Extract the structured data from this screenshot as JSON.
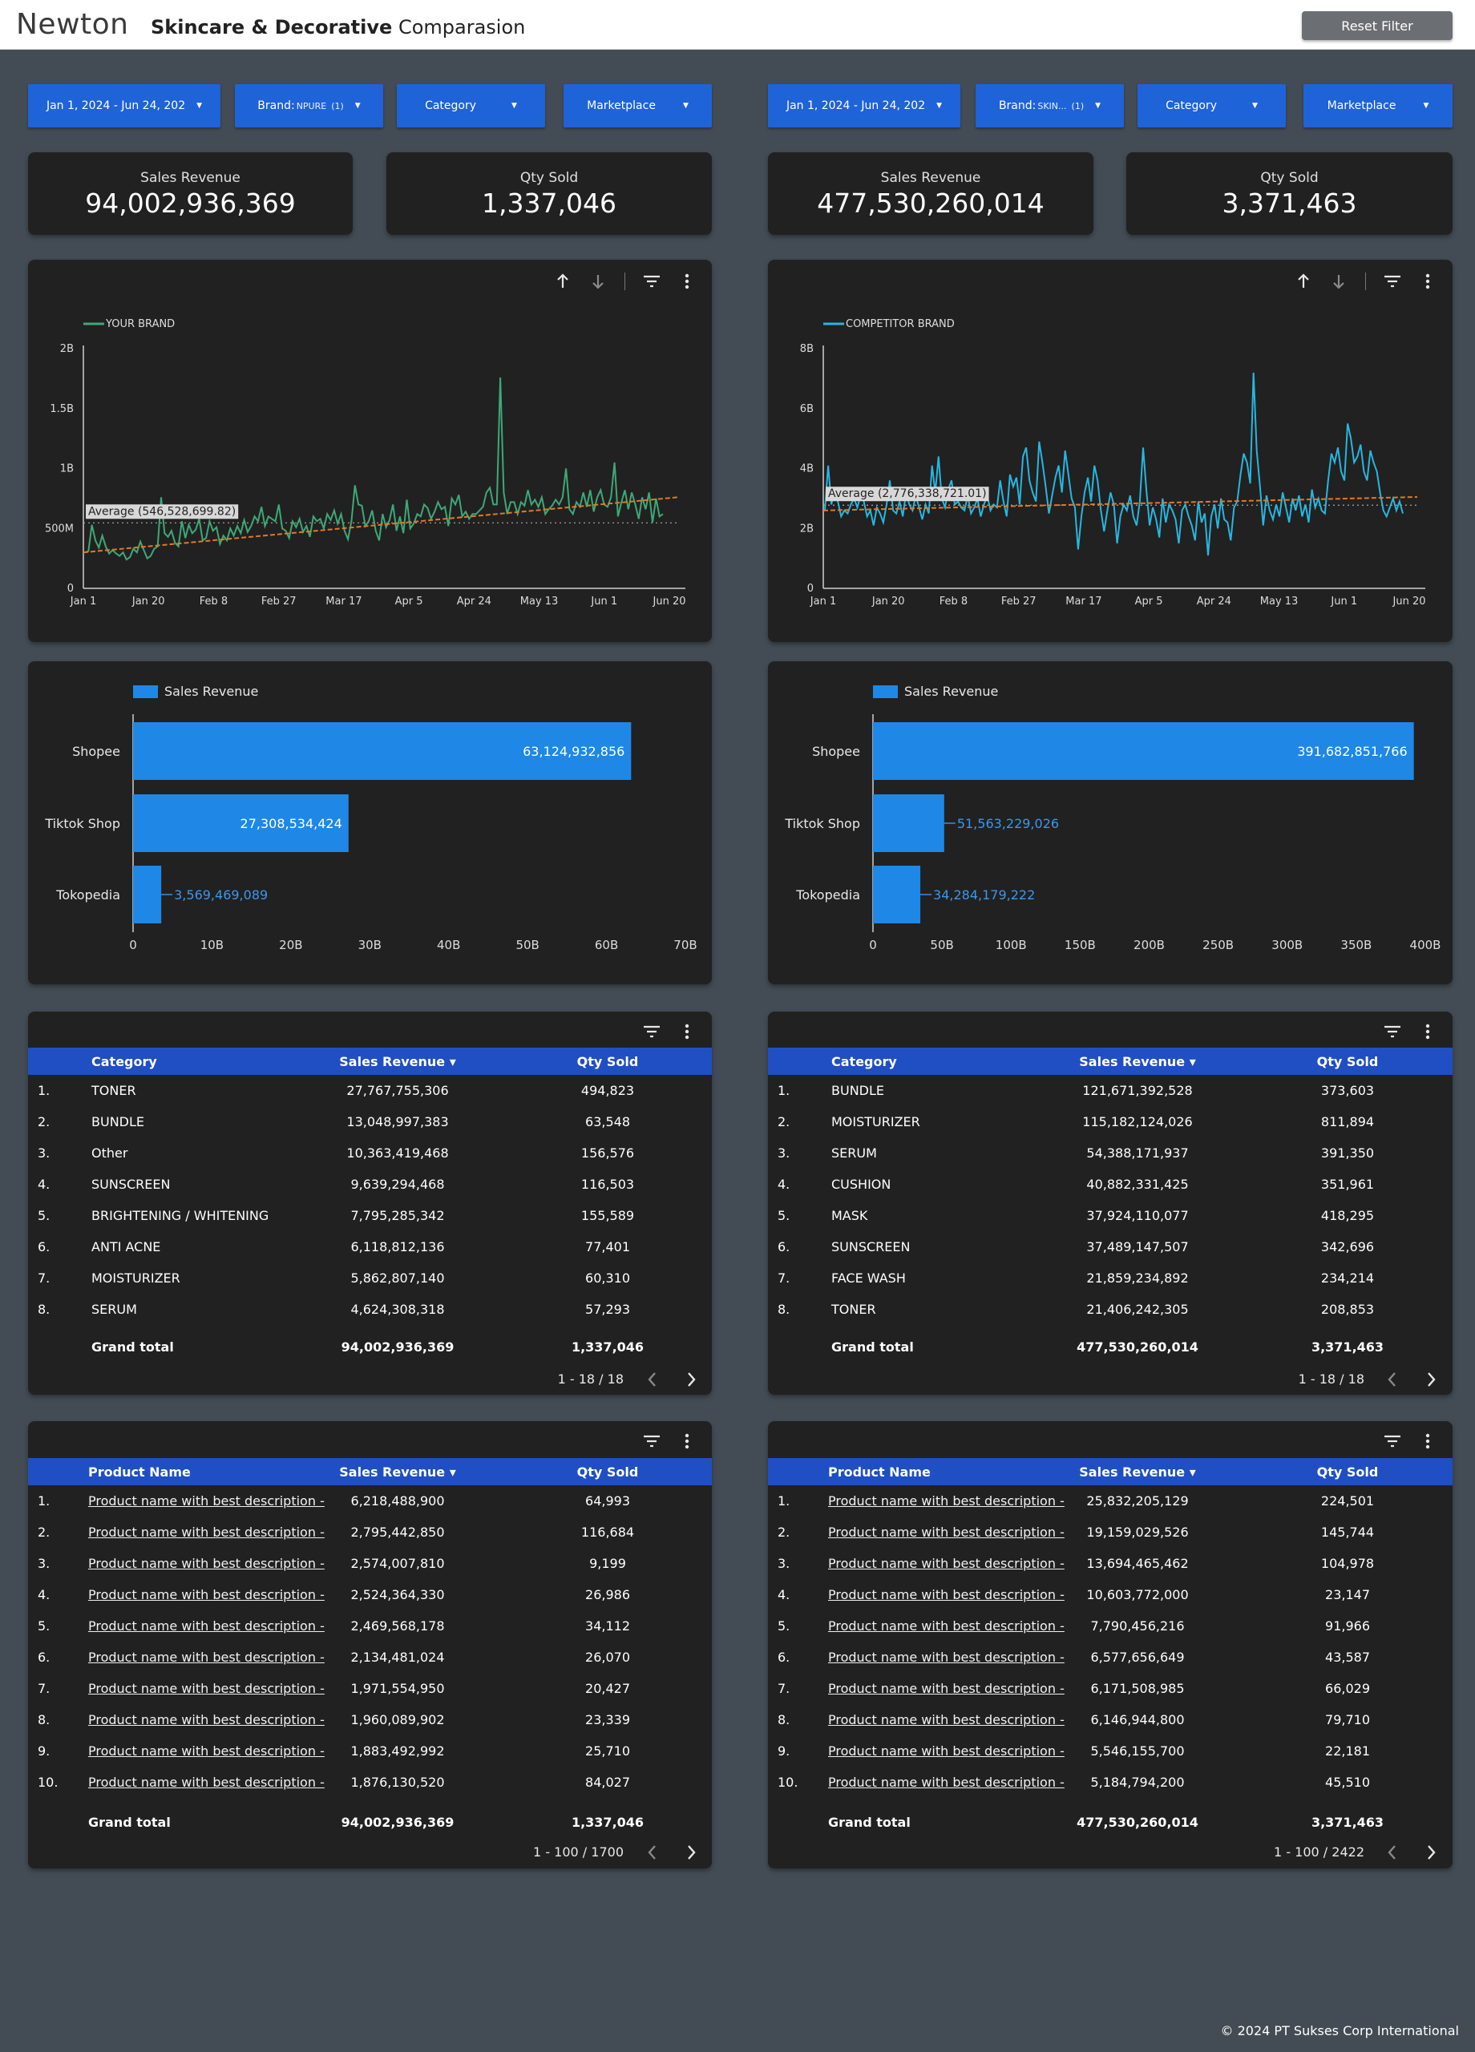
{
  "header": {
    "logo": "Newton",
    "title_bold": "Skincare & Decorative",
    "title_rest": "Comparasion",
    "reset_label": "Reset Filter"
  },
  "left": {
    "filters": {
      "date": "Jan 1, 2024 - Jun 24, 202",
      "brand_label": "Brand:",
      "brand_value": "NPURE",
      "brand_count": "(1)",
      "category": "Category",
      "marketplace": "Marketplace"
    },
    "kpis": [
      {
        "label": "Sales Revenue",
        "value": "94,002,936,369"
      },
      {
        "label": "Qty Sold",
        "value": "1,337,046"
      }
    ],
    "line_chart": {
      "legend": "YOUR BRAND",
      "color": "#3fa878",
      "y_ticks": [
        "0",
        "500M",
        "1B",
        "1.5B",
        "2B"
      ],
      "y_max": 2000000000,
      "x_ticks": [
        "Jan 1",
        "Jan 20",
        "Feb 8",
        "Feb 27",
        "Mar 17",
        "Apr 5",
        "Apr 24",
        "May 13",
        "Jun 1",
        "Jun 20"
      ],
      "average_label": "Average (546,528,699.82)",
      "average": 546528699.82,
      "trend_start": 300000000,
      "trend_end": 760000000,
      "values": [
        300,
        310,
        530,
        400,
        340,
        440,
        350,
        290,
        320,
        290,
        270,
        300,
        240,
        260,
        330,
        300,
        390,
        320,
        250,
        270,
        330,
        350,
        760,
        460,
        430,
        480,
        380,
        350,
        560,
        420,
        530,
        460,
        490,
        580,
        400,
        420,
        560,
        480,
        510,
        370,
        440,
        400,
        500,
        440,
        520,
        460,
        570,
        470,
        520,
        600,
        560,
        680,
        520,
        600,
        580,
        560,
        700,
        500,
        480,
        420,
        560,
        510,
        580,
        470,
        520,
        430,
        600,
        560,
        580,
        500,
        620,
        570,
        650,
        540,
        620,
        480,
        410,
        560,
        860,
        700,
        690,
        520,
        560,
        650,
        480,
        400,
        620,
        510,
        570,
        700,
        480,
        600,
        460,
        740,
        500,
        540,
        620,
        600,
        700,
        670,
        580,
        640,
        720,
        660,
        680,
        520,
        750,
        700,
        780,
        600,
        640,
        580,
        620,
        620,
        650,
        680,
        800,
        840,
        700,
        700,
        1760,
        800,
        620,
        720,
        720,
        620,
        720,
        690,
        820,
        700,
        740,
        680,
        760,
        620,
        660,
        690,
        740,
        700,
        760,
        1000,
        660,
        620,
        720,
        680,
        800,
        680,
        820,
        640,
        760,
        820,
        700,
        680,
        760,
        1050,
        600,
        720,
        820,
        660,
        800,
        700,
        580,
        760,
        660,
        800,
        550,
        750,
        600,
        620
      ]
    },
    "bar_chart": {
      "legend": "Sales Revenue",
      "color": "#1f88e6",
      "categories": [
        "Shopee",
        "Tiktok Shop",
        "Tokopedia"
      ],
      "values": [
        63124932856,
        27308534424,
        3569469089
      ],
      "labels": [
        "63,124,932,856",
        "27,308,534,424",
        "3,569,469,089"
      ],
      "x_ticks": [
        "0",
        "10B",
        "20B",
        "30B",
        "40B",
        "50B",
        "60B",
        "70B"
      ],
      "x_max": 70000000000
    },
    "cat_table": {
      "headers": [
        "Category",
        "Sales Revenue",
        "Qty Sold"
      ],
      "sort_icon": "▾",
      "rows": [
        {
          "n": "1.",
          "name": "TONER",
          "rev": "27,767,755,306",
          "qty": "494,823"
        },
        {
          "n": "2.",
          "name": "BUNDLE",
          "rev": "13,048,997,383",
          "qty": "63,548"
        },
        {
          "n": "3.",
          "name": "Other",
          "rev": "10,363,419,468",
          "qty": "156,576"
        },
        {
          "n": "4.",
          "name": "SUNSCREEN",
          "rev": "9,639,294,468",
          "qty": "116,503"
        },
        {
          "n": "5.",
          "name": "BRIGHTENING / WHITENING",
          "rev": "7,795,285,342",
          "qty": "155,589"
        },
        {
          "n": "6.",
          "name": "ANTI ACNE",
          "rev": "6,118,812,136",
          "qty": "77,401"
        },
        {
          "n": "7.",
          "name": "MOISTURIZER",
          "rev": "5,862,807,140",
          "qty": "60,310"
        },
        {
          "n": "8.",
          "name": "SERUM",
          "rev": "4,624,308,318",
          "qty": "57,293"
        }
      ],
      "total_label": "Grand total",
      "total_rev": "94,002,936,369",
      "total_qty": "1,337,046",
      "pager": "1 - 18 / 18"
    },
    "prod_table": {
      "headers": [
        "Product Name",
        "Sales Revenue",
        "Qty Sold"
      ],
      "rows": [
        {
          "n": "1.",
          "name": "Product name with best description -",
          "rev": "6,218,488,900",
          "qty": "64,993"
        },
        {
          "n": "2.",
          "name": "Product name with best description -",
          "rev": "2,795,442,850",
          "qty": "116,684"
        },
        {
          "n": "3.",
          "name": "Product name with best description -",
          "rev": "2,574,007,810",
          "qty": "9,199"
        },
        {
          "n": "4.",
          "name": "Product name with best description -",
          "rev": "2,524,364,330",
          "qty": "26,986"
        },
        {
          "n": "5.",
          "name": "Product name with best description -",
          "rev": "2,469,568,178",
          "qty": "34,112"
        },
        {
          "n": "6.",
          "name": "Product name with best description -",
          "rev": "2,134,481,024",
          "qty": "26,070"
        },
        {
          "n": "7.",
          "name": "Product name with best description -",
          "rev": "1,971,554,950",
          "qty": "20,427"
        },
        {
          "n": "8.",
          "name": "Product name with best description -",
          "rev": "1,960,089,902",
          "qty": "23,339"
        },
        {
          "n": "9.",
          "name": "Product name with best description -",
          "rev": "1,883,492,992",
          "qty": "25,710"
        },
        {
          "n": "10.",
          "name": "Product name with best description -",
          "rev": "1,876,130,520",
          "qty": "84,027"
        }
      ],
      "total_label": "Grand total",
      "total_rev": "94,002,936,369",
      "total_qty": "1,337,046",
      "pager": "1 - 100 / 1700"
    }
  },
  "right": {
    "filters": {
      "date": "Jan 1, 2024 - Jun 24, 202",
      "brand_label": "Brand:",
      "brand_value": "SKIN...",
      "brand_count": "(1)",
      "category": "Category",
      "marketplace": "Marketplace"
    },
    "kpis": [
      {
        "label": "Sales Revenue",
        "value": "477,530,260,014"
      },
      {
        "label": "Qty Sold",
        "value": "3,371,463"
      }
    ],
    "line_chart": {
      "legend": "COMPETITOR BRAND",
      "color": "#29b6e0",
      "y_ticks": [
        "0",
        "2B",
        "4B",
        "6B",
        "8B"
      ],
      "y_max": 8000000000,
      "x_ticks": [
        "Jan 1",
        "Jan 20",
        "Feb 8",
        "Feb 27",
        "Mar 17",
        "Apr 5",
        "Apr 24",
        "May 13",
        "Jun 1",
        "Jun 20"
      ],
      "average_label": "Average (2,776,338,721.01)",
      "average": 2776338721.01,
      "trend_start": 2600000000,
      "trend_end": 3050000000,
      "values": [
        2600,
        4100,
        2800,
        3300,
        2900,
        2400,
        2600,
        2500,
        2800,
        3000,
        2700,
        3100,
        2900,
        2400,
        2600,
        2100,
        2700,
        2500,
        2200,
        2800,
        3600,
        2600,
        2500,
        2900,
        2400,
        3200,
        2800,
        2600,
        3100,
        2700,
        2300,
        2800,
        2500,
        4100,
        3200,
        4400,
        3000,
        2700,
        3300,
        3600,
        2800,
        2900,
        2700,
        2600,
        3100,
        2500,
        2700,
        3000,
        2400,
        2800,
        3100,
        2600,
        2800,
        2700,
        3600,
        2900,
        2400,
        3800,
        3400,
        3700,
        2800,
        4400,
        4700,
        3600,
        3200,
        2900,
        4900,
        4200,
        3400,
        2500,
        3100,
        3700,
        4100,
        3200,
        4600,
        3800,
        3000,
        2700,
        1300,
        2400,
        3200,
        3700,
        2900,
        4100,
        3600,
        2600,
        1900,
        2600,
        3200,
        2800,
        1500,
        2400,
        2800,
        2600,
        3100,
        2400,
        2100,
        2900,
        4700,
        3300,
        2100,
        2700,
        2300,
        1700,
        3000,
        2200,
        2800,
        2600,
        2300,
        1500,
        2600,
        2800,
        2400,
        2100,
        1600,
        2900,
        2200,
        2500,
        1100,
        2400,
        2800,
        2000,
        3000,
        2300,
        2200,
        1600,
        2700,
        2900,
        3800,
        4500,
        4200,
        3500,
        7200,
        4600,
        3400,
        2100,
        3100,
        2600,
        2300,
        2800,
        2400,
        3200,
        2700,
        2200,
        3000,
        2600,
        3100,
        2400,
        2800,
        2200,
        3300,
        2700,
        3000,
        2600,
        2500,
        3600,
        4500,
        4200,
        4700,
        3900,
        3600,
        5500,
        5000,
        4200,
        4400,
        4800,
        3900,
        3600,
        4600,
        4200,
        3900,
        3200,
        2600,
        2400,
        2700,
        3000,
        2600,
        2900,
        2500
      ]
    },
    "bar_chart": {
      "legend": "Sales Revenue",
      "color": "#1f88e6",
      "categories": [
        "Shopee",
        "Tiktok Shop",
        "Tokopedia"
      ],
      "values": [
        391682851766,
        51563229026,
        34284179222
      ],
      "labels": [
        "391,682,851,766",
        "51,563,229,026",
        "34,284,179,222"
      ],
      "x_ticks": [
        "0",
        "50B",
        "100B",
        "150B",
        "200B",
        "250B",
        "300B",
        "350B",
        "400B"
      ],
      "x_max": 400000000000
    },
    "cat_table": {
      "headers": [
        "Category",
        "Sales Revenue",
        "Qty Sold"
      ],
      "sort_icon": "▾",
      "rows": [
        {
          "n": "1.",
          "name": "BUNDLE",
          "rev": "121,671,392,528",
          "qty": "373,603"
        },
        {
          "n": "2.",
          "name": "MOISTURIZER",
          "rev": "115,182,124,026",
          "qty": "811,894"
        },
        {
          "n": "3.",
          "name": "SERUM",
          "rev": "54,388,171,937",
          "qty": "391,350"
        },
        {
          "n": "4.",
          "name": "CUSHION",
          "rev": "40,882,331,425",
          "qty": "351,961"
        },
        {
          "n": "5.",
          "name": "MASK",
          "rev": "37,924,110,077",
          "qty": "418,295"
        },
        {
          "n": "6.",
          "name": "SUNSCREEN",
          "rev": "37,489,147,507",
          "qty": "342,696"
        },
        {
          "n": "7.",
          "name": "FACE WASH",
          "rev": "21,859,234,892",
          "qty": "234,214"
        },
        {
          "n": "8.",
          "name": "TONER",
          "rev": "21,406,242,305",
          "qty": "208,853"
        }
      ],
      "total_label": "Grand total",
      "total_rev": "477,530,260,014",
      "total_qty": "3,371,463",
      "pager": "1 - 18 / 18"
    },
    "prod_table": {
      "headers": [
        "Product Name",
        "Sales Revenue",
        "Qty Sold"
      ],
      "rows": [
        {
          "n": "1.",
          "name": "Product name with best description -",
          "rev": "25,832,205,129",
          "qty": "224,501"
        },
        {
          "n": "2.",
          "name": "Product name with best description -",
          "rev": "19,159,029,526",
          "qty": "145,744"
        },
        {
          "n": "3.",
          "name": "Product name with best description -",
          "rev": "13,694,465,462",
          "qty": "104,978"
        },
        {
          "n": "4.",
          "name": "Product name with best description -",
          "rev": "10,603,772,000",
          "qty": "23,147"
        },
        {
          "n": "5.",
          "name": "Product name with best description -",
          "rev": "7,790,456,216",
          "qty": "91,966"
        },
        {
          "n": "6.",
          "name": "Product name with best description -",
          "rev": "6,577,656,649",
          "qty": "43,587"
        },
        {
          "n": "7.",
          "name": "Product name with best description -",
          "rev": "6,171,508,985",
          "qty": "66,029"
        },
        {
          "n": "8.",
          "name": "Product name with best description -",
          "rev": "6,146,944,800",
          "qty": "79,710"
        },
        {
          "n": "9.",
          "name": "Product name with best description -",
          "rev": "5,546,155,700",
          "qty": "22,181"
        },
        {
          "n": "10.",
          "name": "Product name with best description -",
          "rev": "5,184,794,200",
          "qty": "45,510"
        }
      ],
      "total_label": "Grand total",
      "total_rev": "477,530,260,014",
      "total_qty": "3,371,463",
      "pager": "1 - 100 / 2422"
    }
  },
  "footer": "© 2024 PT Sukses Corp International"
}
